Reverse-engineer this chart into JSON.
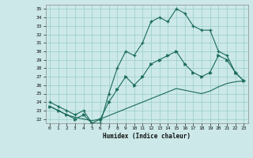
{
  "xlabel": "Humidex (Indice chaleur)",
  "bg_color": "#cce8e8",
  "grid_color": "#99cccc",
  "line_color": "#1a6b5a",
  "xlim": [
    -0.5,
    23.5
  ],
  "ylim": [
    21.5,
    35.5
  ],
  "yticks": [
    22,
    23,
    24,
    25,
    26,
    27,
    28,
    29,
    30,
    31,
    32,
    33,
    34,
    35
  ],
  "xticks": [
    0,
    1,
    2,
    3,
    4,
    5,
    6,
    7,
    8,
    9,
    10,
    11,
    12,
    13,
    14,
    15,
    16,
    17,
    18,
    19,
    20,
    21,
    22,
    23
  ],
  "line1_x": [
    0,
    1,
    2,
    3,
    4,
    5,
    6,
    7,
    8,
    9,
    10,
    11,
    12,
    13,
    14,
    15,
    16,
    17,
    18,
    19,
    20,
    21,
    22,
    23
  ],
  "line1_y": [
    24.0,
    23.5,
    23.0,
    22.5,
    23.0,
    21.5,
    21.5,
    25.0,
    28.0,
    30.0,
    29.5,
    31.0,
    33.5,
    34.0,
    33.5,
    35.0,
    34.5,
    33.0,
    32.5,
    32.5,
    30.0,
    29.5,
    27.5,
    26.5
  ],
  "line2_x": [
    0,
    1,
    2,
    3,
    4,
    5,
    6,
    7,
    8,
    9,
    10,
    11,
    12,
    13,
    14,
    15,
    16,
    17,
    18,
    19,
    20,
    21,
    22,
    23
  ],
  "line2_y": [
    23.5,
    23.0,
    22.5,
    22.0,
    22.5,
    21.5,
    22.0,
    24.0,
    25.5,
    27.0,
    26.0,
    27.0,
    28.5,
    29.0,
    29.5,
    30.0,
    28.5,
    27.5,
    27.0,
    27.5,
    29.5,
    29.0,
    27.5,
    26.5
  ],
  "line3_x": [
    0,
    1,
    2,
    3,
    4,
    5,
    6,
    7,
    8,
    9,
    10,
    11,
    12,
    13,
    14,
    15,
    16,
    17,
    18,
    19,
    20,
    21,
    22,
    23
  ],
  "line3_y": [
    23.5,
    23.0,
    22.5,
    22.2,
    22.0,
    21.8,
    22.0,
    22.4,
    22.8,
    23.2,
    23.6,
    24.0,
    24.4,
    24.8,
    25.2,
    25.6,
    25.4,
    25.2,
    25.0,
    25.3,
    25.8,
    26.2,
    26.4,
    26.5
  ]
}
